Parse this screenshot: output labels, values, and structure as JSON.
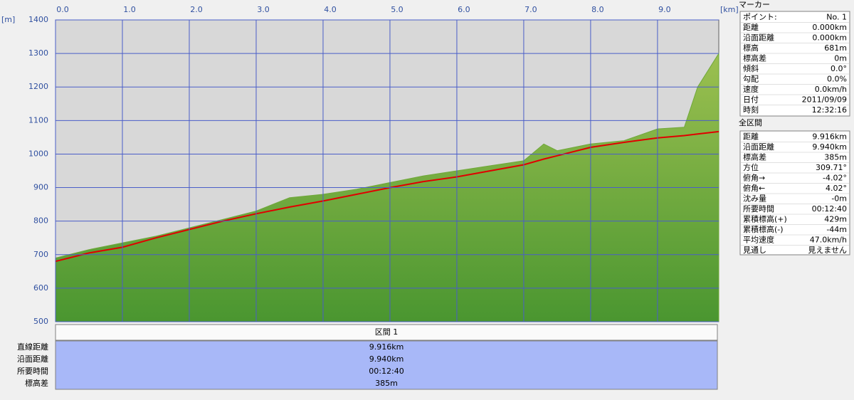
{
  "chart_data": {
    "type": "area-line",
    "y_label": "[m]",
    "x_label": "[km]",
    "x": [
      0,
      0.5,
      1,
      1.5,
      2,
      2.5,
      3,
      3.5,
      4,
      4.5,
      5,
      5.5,
      6,
      6.5,
      7,
      7.3,
      7.5,
      8,
      8.5,
      9,
      9.4,
      9.6,
      9.916
    ],
    "series": [
      {
        "kind": "area",
        "color": "#6fa83a",
        "values": [
          690,
          715,
          735,
          755,
          780,
          805,
          830,
          870,
          880,
          895,
          915,
          935,
          950,
          965,
          980,
          1030,
          1010,
          1030,
          1040,
          1075,
          1080,
          1200,
          1300
        ]
      },
      {
        "kind": "line",
        "color": "#e00000",
        "values": [
          680,
          705,
          722,
          750,
          775,
          800,
          822,
          842,
          860,
          880,
          900,
          918,
          932,
          950,
          968,
          985,
          995,
          1020,
          1035,
          1048,
          1055,
          1060,
          1067
        ]
      }
    ],
    "xlim": [
      0,
      9.916
    ],
    "ylim": [
      500,
      1400
    ],
    "xticks": [
      {
        "value": 0,
        "label": "0.0"
      },
      {
        "value": 1,
        "label": "1.0"
      },
      {
        "value": 2,
        "label": "2.0"
      },
      {
        "value": 3,
        "label": "3.0"
      },
      {
        "value": 4,
        "label": "4.0"
      },
      {
        "value": 5,
        "label": "5.0"
      },
      {
        "value": 6,
        "label": "6.0"
      },
      {
        "value": 7,
        "label": "7.0"
      },
      {
        "value": 8,
        "label": "8.0"
      },
      {
        "value": 9,
        "label": "9.0"
      }
    ],
    "yticks": [
      500,
      600,
      700,
      800,
      900,
      1000,
      1100,
      1200,
      1300,
      1400
    ],
    "grid": true
  },
  "summary_table": {
    "header": "区間 1",
    "rows": [
      [
        "直線距離",
        "9.916km"
      ],
      [
        "沿面距離",
        "9.940km"
      ],
      [
        "所要時間",
        "00:12:40"
      ],
      [
        "標高差",
        "385m"
      ]
    ]
  },
  "marker_panel": {
    "title": "マーカー",
    "rows": [
      [
        "ポイント:",
        "No. 1"
      ],
      [
        "距離",
        "0.000km"
      ],
      [
        "沿面距離",
        "0.000km"
      ],
      [
        "標高",
        "681m"
      ],
      [
        "標高差",
        "0m"
      ],
      [
        "傾斜",
        "0.0°"
      ],
      [
        "勾配",
        "0.0%"
      ],
      [
        "速度",
        "0.0km/h"
      ],
      [
        "日付",
        "2011/09/09"
      ],
      [
        "時刻",
        "12:32:16"
      ]
    ]
  },
  "total_panel": {
    "title": "全区間",
    "rows": [
      [
        "距離",
        "9.916km"
      ],
      [
        "沿面距離",
        "9.940km"
      ],
      [
        "標高差",
        "385m"
      ],
      [
        "方位",
        "309.71°"
      ],
      [
        "俯角→",
        "-4.02°"
      ],
      [
        "俯角←",
        "4.02°"
      ],
      [
        "沈み量",
        "-0m"
      ],
      [
        "所要時間",
        "00:12:40"
      ],
      [
        "累積標高(+)",
        "429m"
      ],
      [
        "累積標高(-)",
        "-44m"
      ],
      [
        "平均速度",
        "47.0km/h"
      ],
      [
        "見通し",
        "見えません"
      ]
    ]
  }
}
